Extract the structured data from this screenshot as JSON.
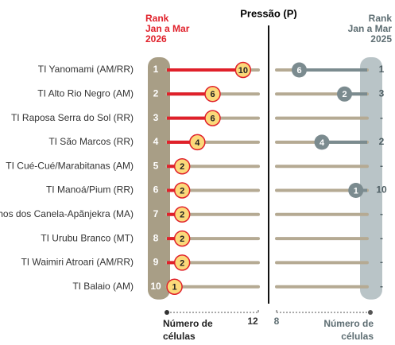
{
  "chart_data": {
    "type": "dumbbell",
    "title": "Pressão (P)",
    "rank_2026_header": [
      "Rank",
      "Jan a Mar",
      "2026"
    ],
    "rank_2025_header": [
      "Rank",
      "Jan a Mar",
      "2025"
    ],
    "categories": [
      "TI Yanomami (AM/RR)",
      "TI Alto Rio Negro (AM)",
      "TI Raposa Serra do Sol (RR)",
      "TI São Marcos (RR)",
      "TI Cué-Cué/Marabitanas (AM)",
      "TI Manoá/Pium (RR)",
      "TI Porquinhos dos Canela-Apãnjekra (MA)",
      "TI Urubu Branco (MT)",
      "TI Waimiri Atroari (AM/RR)",
      "TI Balaio (AM)"
    ],
    "rank_2026": [
      1,
      2,
      3,
      4,
      5,
      6,
      7,
      8,
      9,
      10
    ],
    "rank_2025": [
      1,
      3,
      "-",
      2,
      "-",
      10,
      "-",
      "-",
      "-",
      "-"
    ],
    "series": [
      {
        "color": "#e0202a",
        "values": [
          10,
          6,
          6,
          4,
          2,
          2,
          2,
          2,
          2,
          1
        ]
      },
      {
        "color": "#7b8b8f",
        "axis": "x2",
        "values": [
          6,
          2,
          null,
          4,
          null,
          1,
          null,
          null,
          null,
          null
        ]
      }
    ],
    "xlabel": [
      "Número de",
      "células"
    ],
    "xlim": [
      0,
      12
    ],
    "xticks": [
      12
    ],
    "x2lim": [
      0,
      8
    ],
    "x2ticks": [
      8
    ]
  }
}
